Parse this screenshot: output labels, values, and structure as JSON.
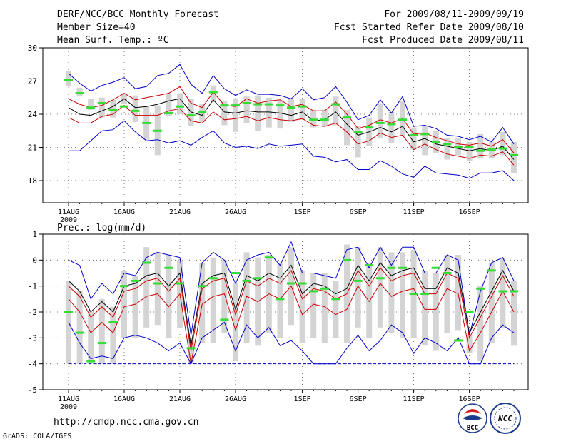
{
  "header": {
    "title": "DERF/NCC/BCC Monthly Forecast",
    "member_size": "Member Size=40",
    "variable": "Mean Surf. Temp.: ºC",
    "period": "For 2009/08/11-2009/09/19",
    "started": "Fcst Started Refer Date 2009/08/10",
    "produced": "Fcst Produced Date 2009/08/11"
  },
  "footer": {
    "url": "http://cmdp.ncc.cma.gov.cn",
    "credit": "GrADS: COLA/IGES",
    "logo_bcc": "BCC",
    "logo_ncc": "NCC"
  },
  "colors": {
    "envelope": "#0000cc",
    "spread": "#cc0000",
    "mean": "#000000",
    "median": "#33dd33",
    "box": "#d4d4d4",
    "grid": "#555555"
  },
  "chart_data": [
    {
      "type": "line",
      "title": "Mean Surf. Temp.: ºC",
      "xtick_labels": [
        "11AUG",
        "16AUG",
        "21AUG",
        "26AUG",
        "1SEP",
        "6SEP",
        "11SEP",
        "16SEP"
      ],
      "xtick_index": [
        0,
        5,
        10,
        15,
        21,
        26,
        31,
        36
      ],
      "year_label": "2009",
      "ylim": [
        16,
        30
      ],
      "yticks": [
        18,
        21,
        24,
        27,
        30
      ],
      "grid": true,
      "series": [
        {
          "name": "max",
          "color": "blue",
          "values": [
            27.7,
            26.8,
            26.1,
            26.6,
            26.9,
            27.3,
            26.3,
            26.5,
            27.5,
            27.7,
            28.5,
            26.7,
            25.9,
            27.5,
            26.3,
            25.7,
            26.2,
            25.8,
            25.8,
            25.7,
            25.4,
            26.3,
            25.3,
            25.5,
            26.5,
            25.1,
            23.5,
            23.9,
            25.3,
            24.1,
            25.6,
            22.9,
            23.0,
            22.7,
            22.1,
            22.0,
            21.7,
            22.0,
            21.5,
            22.8,
            21.3
          ]
        },
        {
          "name": "high",
          "color": "red",
          "values": [
            25.4,
            24.9,
            24.6,
            24.8,
            25.3,
            25.9,
            25.3,
            25.5,
            25.7,
            25.9,
            26.5,
            25.0,
            24.6,
            26.0,
            24.8,
            24.7,
            25.4,
            25.0,
            25.2,
            25.3,
            24.7,
            24.9,
            24.3,
            24.3,
            25.1,
            24.0,
            22.7,
            23.0,
            23.5,
            23.2,
            23.6,
            22.2,
            22.3,
            21.9,
            21.6,
            21.3,
            21.2,
            21.4,
            21.1,
            21.7,
            20.5
          ]
        },
        {
          "name": "mean",
          "color": "black",
          "values": [
            24.6,
            24.0,
            23.9,
            24.3,
            24.7,
            25.4,
            24.6,
            24.7,
            24.9,
            25.2,
            25.4,
            24.2,
            23.9,
            25.3,
            24.2,
            24.1,
            24.3,
            24.2,
            24.2,
            24.1,
            23.9,
            24.2,
            23.4,
            23.5,
            24.2,
            23.1,
            22.1,
            22.4,
            22.8,
            22.4,
            22.9,
            21.5,
            21.8,
            21.3,
            21.1,
            20.9,
            20.7,
            20.9,
            20.7,
            21.1,
            19.9
          ]
        },
        {
          "name": "low",
          "color": "red",
          "values": [
            23.7,
            23.2,
            23.2,
            23.8,
            24.0,
            24.8,
            23.9,
            23.9,
            23.9,
            24.3,
            24.5,
            23.4,
            23.2,
            24.2,
            23.5,
            23.6,
            23.8,
            23.4,
            23.7,
            23.5,
            23.4,
            23.6,
            23.0,
            22.9,
            23.2,
            22.4,
            21.3,
            21.6,
            22.3,
            21.9,
            22.1,
            20.8,
            21.3,
            20.8,
            20.4,
            20.2,
            20.0,
            20.3,
            20.2,
            20.6,
            19.4
          ]
        },
        {
          "name": "min",
          "color": "blue",
          "values": [
            20.7,
            20.7,
            21.6,
            22.5,
            22.6,
            23.4,
            22.4,
            21.6,
            21.7,
            21.4,
            21.6,
            21.2,
            21.9,
            22.5,
            21.4,
            21.0,
            21.1,
            20.9,
            21.3,
            21.1,
            21.2,
            21.3,
            20.2,
            20.1,
            19.7,
            19.9,
            19.0,
            19.0,
            19.8,
            19.3,
            18.6,
            18.3,
            19.3,
            18.7,
            18.6,
            18.5,
            18.2,
            18.7,
            18.7,
            18.9,
            18.0
          ]
        }
      ],
      "boxes": {
        "box_low": [
          26.5,
          25.6,
          24.4,
          23.7,
          23.7,
          24.9,
          23.3,
          21.7,
          20.3,
          23.8,
          24.0,
          22.9,
          23.3,
          25.1,
          23.0,
          22.4,
          23.2,
          22.5,
          22.8,
          22.7,
          23.3,
          23.5,
          22.8,
          22.9,
          23.0,
          21.2,
          20.1,
          21.1,
          21.8,
          21.4,
          22.0,
          20.8,
          20.3,
          20.5,
          19.9,
          20.3,
          19.8,
          20.0,
          20.0,
          20.3,
          18.7
        ],
        "box_high": [
          27.9,
          26.4,
          25.4,
          25.5,
          25.3,
          25.8,
          25.7,
          24.7,
          24.8,
          25.9,
          25.9,
          25.4,
          24.9,
          26.6,
          25.2,
          25.4,
          25.6,
          25.7,
          25.5,
          25.3,
          25.4,
          25.4,
          24.4,
          24.4,
          25.6,
          24.4,
          22.9,
          23.7,
          25.0,
          24.2,
          25.2,
          22.8,
          22.9,
          22.5,
          21.8,
          21.8,
          21.5,
          22.2,
          21.5,
          22.4,
          21.5
        ],
        "median": [
          27.1,
          25.9,
          24.6,
          25.0,
          24.4,
          24.7,
          24.3,
          23.2,
          22.5,
          24.1,
          24.7,
          23.9,
          24.2,
          26.0,
          24.8,
          24.8,
          25.0,
          24.9,
          24.9,
          24.8,
          24.6,
          24.7,
          23.5,
          23.5,
          24.9,
          23.7,
          22.4,
          22.8,
          23.2,
          23.1,
          23.5,
          22.1,
          22.2,
          21.5,
          21.3,
          21.0,
          21.0,
          20.7,
          20.8,
          20.9,
          20.3
        ]
      }
    },
    {
      "type": "line",
      "title": "Prec.: log(mm/d)",
      "xtick_labels": [
        "11AUG",
        "16AUG",
        "21AUG",
        "26AUG",
        "1SEP",
        "6SEP",
        "11SEP",
        "16SEP"
      ],
      "xtick_index": [
        0,
        5,
        10,
        15,
        21,
        26,
        31,
        36
      ],
      "year_label": "2009",
      "ylim": [
        -5,
        1
      ],
      "yticks": [
        -5,
        -4,
        -3,
        -2,
        -1,
        0,
        1
      ],
      "grid": true,
      "series": [
        {
          "name": "max",
          "color": "blue",
          "values": [
            0.0,
            -0.2,
            -1.5,
            -0.9,
            -1.3,
            -0.5,
            -0.6,
            0.1,
            0.3,
            0.2,
            0.1,
            -2.9,
            -0.1,
            0.3,
            0.0,
            -0.9,
            0.0,
            0.2,
            0.3,
            -0.2,
            0.7,
            -0.5,
            -0.5,
            -0.6,
            -0.7,
            0.4,
            0.5,
            -0.3,
            0.5,
            -0.2,
            0.5,
            0.5,
            -0.5,
            -0.5,
            0.2,
            0.0,
            -2.9,
            -1.2,
            -0.1,
            0.1,
            -0.8
          ]
        },
        {
          "name": "high",
          "color": "black",
          "values": [
            -0.8,
            -1.2,
            -2.0,
            -1.6,
            -2.0,
            -1.0,
            -0.9,
            -0.6,
            -0.5,
            -1.0,
            -0.5,
            -3.3,
            -0.9,
            -0.6,
            -0.5,
            -1.9,
            -0.6,
            -0.8,
            -0.5,
            -0.7,
            -0.2,
            -1.3,
            -0.9,
            -1.0,
            -1.3,
            -1.1,
            -0.2,
            -0.8,
            -0.1,
            -0.6,
            -0.4,
            -0.3,
            -1.1,
            -1.1,
            -0.3,
            -0.5,
            -2.8,
            -2.0,
            -1.2,
            -0.4,
            -1.2
          ]
        },
        {
          "name": "mean",
          "color": "red",
          "values": [
            -1.0,
            -1.4,
            -2.2,
            -1.8,
            -2.2,
            -1.2,
            -1.1,
            -0.8,
            -0.7,
            -1.2,
            -0.7,
            -3.5,
            -1.1,
            -0.8,
            -0.7,
            -2.1,
            -0.8,
            -1.0,
            -0.7,
            -0.9,
            -0.4,
            -1.5,
            -1.1,
            -1.2,
            -1.5,
            -1.3,
            -0.4,
            -1.0,
            -0.3,
            -0.8,
            -0.6,
            -0.5,
            -1.3,
            -1.3,
            -0.5,
            -0.7,
            -3.0,
            -2.2,
            -1.4,
            -0.6,
            -1.4
          ]
        },
        {
          "name": "low",
          "color": "red",
          "values": [
            -1.5,
            -2.0,
            -2.8,
            -2.4,
            -2.8,
            -1.8,
            -1.7,
            -1.4,
            -1.3,
            -1.8,
            -1.3,
            -4.0,
            -1.7,
            -1.4,
            -1.3,
            -2.7,
            -1.4,
            -1.6,
            -1.3,
            -1.5,
            -1.0,
            -2.1,
            -1.7,
            -1.8,
            -2.1,
            -1.9,
            -1.0,
            -1.6,
            -0.9,
            -1.4,
            -1.2,
            -1.1,
            -1.9,
            -1.9,
            -1.1,
            -1.3,
            -3.5,
            -2.8,
            -2.0,
            -1.2,
            -2.0
          ]
        },
        {
          "name": "min",
          "color": "blue",
          "values": [
            -2.4,
            -3.2,
            -3.8,
            -3.7,
            -3.8,
            -3.0,
            -2.9,
            -3.0,
            -3.2,
            -3.5,
            -3.2,
            -4.0,
            -3.0,
            -2.7,
            -2.4,
            -3.5,
            -2.5,
            -3.0,
            -2.6,
            -3.3,
            -3.1,
            -3.5,
            -4.0,
            -4.0,
            -4.0,
            -3.4,
            -2.9,
            -3.5,
            -3.1,
            -2.5,
            -2.8,
            -3.6,
            -3.0,
            -3.2,
            -3.5,
            -3.0,
            -4.0,
            -4.0,
            -3.0,
            -2.5,
            -2.8
          ]
        }
      ],
      "boxes": {
        "box_low": [
          -4.0,
          -4.0,
          -4.0,
          -4.0,
          -4.0,
          -3.0,
          -3.0,
          -2.6,
          -2.5,
          -3.0,
          -2.6,
          -4.0,
          -3.2,
          -3.2,
          -2.8,
          -3.9,
          -3.2,
          -3.3,
          -2.8,
          -3.0,
          -2.5,
          -3.2,
          -3.0,
          -3.2,
          -3.0,
          -3.2,
          -2.6,
          -3.0,
          -2.6,
          -2.8,
          -3.0,
          -3.0,
          -3.3,
          -3.5,
          -2.8,
          -2.7,
          -3.6,
          -3.9,
          -3.2,
          -2.6,
          -3.3
        ],
        "box_high": [
          -0.8,
          -1.2,
          -2.0,
          -1.5,
          -1.8,
          -0.4,
          -0.6,
          0.5,
          0.3,
          0.2,
          0.0,
          -3.0,
          -0.1,
          0.1,
          0.0,
          -0.9,
          0.3,
          0.1,
          0.2,
          -0.1,
          0.5,
          -0.4,
          -0.5,
          -0.5,
          -0.8,
          0.6,
          0.5,
          -0.1,
          0.5,
          0.3,
          0.3,
          0.4,
          -0.4,
          -0.5,
          0.2,
          0.2,
          -2.9,
          -1.0,
          -0.1,
          0.1,
          -0.8
        ],
        "median": [
          -2.0,
          -2.8,
          -3.9,
          -3.2,
          -2.4,
          -1.0,
          -0.8,
          -0.1,
          -0.9,
          -0.3,
          -0.9,
          -3.4,
          -1.0,
          -0.7,
          -2.3,
          -0.5,
          -0.8,
          -0.7,
          0.1,
          -1.5,
          -0.9,
          -0.9,
          -1.2,
          -1.1,
          -1.5,
          0.0,
          -0.8,
          -0.2,
          -0.7,
          -0.3,
          -0.3,
          -1.3,
          -1.3,
          -0.3,
          -0.5,
          -3.1,
          -2.0,
          -1.1,
          -0.4,
          -1.2,
          -1.2
        ]
      }
    }
  ]
}
